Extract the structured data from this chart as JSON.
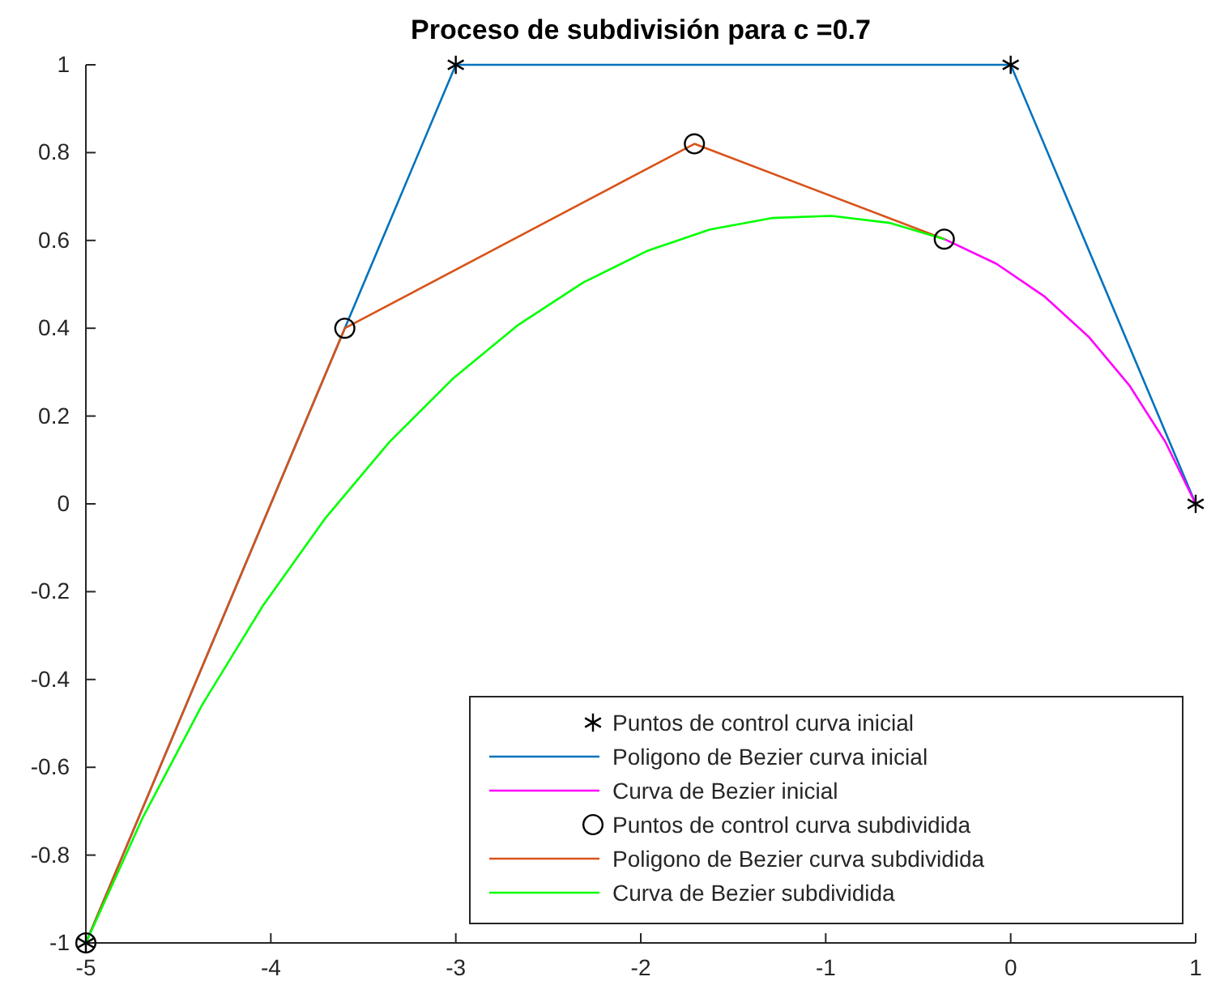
{
  "chart_data": {
    "type": "line",
    "title": "Proceso de subdivisión para c =0.7",
    "xlim": [
      -5,
      1
    ],
    "ylim": [
      -1,
      1
    ],
    "xticks": [
      -5,
      -4,
      -3,
      -2,
      -1,
      0,
      1
    ],
    "yticks": [
      -1,
      {
        "value": -0.8,
        "label": "-0.8"
      },
      {
        "value": -0.6,
        "label": "-0.6"
      },
      {
        "value": -0.4,
        "label": "-0.4"
      },
      {
        "value": -0.2,
        "label": "-0.2"
      },
      0,
      {
        "value": 0.2,
        "label": "0.2"
      },
      {
        "value": 0.4,
        "label": "0.4"
      },
      {
        "value": 0.6,
        "label": "0.6"
      },
      {
        "value": 0.8,
        "label": "0.8"
      },
      1
    ],
    "grid": false,
    "legend": "bottom right",
    "series": [
      {
        "name": "Puntos de control curva inicial",
        "type": "scatter",
        "marker": "cross",
        "color": "#000000",
        "x": [
          -5,
          -3,
          0,
          1
        ],
        "values": [
          -1,
          1,
          1,
          0
        ]
      },
      {
        "name": "Poligono de Bezier curva inicial",
        "type": "line",
        "color": "#0072bd",
        "x": [
          -5,
          -3,
          0,
          1
        ],
        "values": [
          -1,
          1,
          1,
          0
        ]
      },
      {
        "name": "Curva de Bezier inicial",
        "type": "line",
        "color": "#ff00ff",
        "x": [
          -0.359,
          -0.078,
          0.184,
          0.425,
          0.643,
          0.835,
          1
        ],
        "values": [
          0.603,
          0.547,
          0.472,
          0.379,
          0.269,
          0.142,
          0
        ]
      },
      {
        "name": "Puntos de control curva subdividida",
        "type": "scatter",
        "marker": "circle",
        "color": "#000000",
        "x": [
          -5,
          -3.6,
          -1.71,
          -0.359
        ],
        "values": [
          -1,
          0.4,
          0.82,
          0.603
        ]
      },
      {
        "name": "Poligono de Bezier curva subdividida",
        "type": "line",
        "color": "#d95319",
        "x": [
          -5,
          -3.6,
          -1.71,
          -0.359
        ],
        "values": [
          -1,
          0.4,
          0.82,
          0.603
        ]
      },
      {
        "name": "Curva de Bezier subdividida",
        "type": "line",
        "color": "#00ff00",
        "x": [
          -5,
          -4.693,
          -4.373,
          -4.043,
          -3.704,
          -3.359,
          -3.011,
          -2.661,
          -2.312,
          -1.966,
          -1.625,
          -1.292,
          -0.968,
          -0.656,
          -0.359
        ],
        "values": [
          -1,
          -0.715,
          -0.459,
          -0.232,
          -0.032,
          0.141,
          0.287,
          0.408,
          0.504,
          0.576,
          0.625,
          0.651,
          0.656,
          0.64,
          0.603
        ]
      }
    ]
  }
}
